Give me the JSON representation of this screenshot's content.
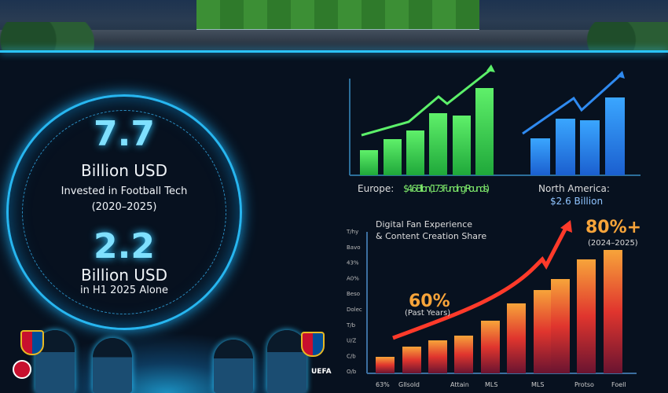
{
  "left_panel": {
    "stat1_value": "7.7",
    "stat1_unit": "Billion USD",
    "stat1_desc": "Invested in Football Tech",
    "stat1_period": "(2020–2025)",
    "stat2_value": "2.2",
    "stat2_unit": "Billion USD",
    "stat2_desc": "in H1 2025 Alone",
    "logo_text": "UEFA"
  },
  "chart_data": [
    {
      "type": "bar",
      "title": "Europe: $4.6 Billion (173 Funding Rounds)",
      "title_parts": {
        "label": "Europe:",
        "value": "$4.6 Billion (173 Funding Rounds)"
      },
      "values": [
        32,
        46,
        57,
        79,
        76,
        111
      ],
      "color": "#3ddc4f",
      "trend_arrow": true
    },
    {
      "type": "bar",
      "title": "North America: $2.6 Billion",
      "title_parts": {
        "label": "North America:",
        "value": "$2.6 Billion"
      },
      "values": [
        47,
        72,
        70,
        99
      ],
      "color": "#2f86f0",
      "trend_arrow": true
    },
    {
      "type": "bar",
      "title": "Digital Fan Experience & Content Creation Share",
      "title_lines": [
        "Digital Fan Experience",
        "& Content Creation Share"
      ],
      "ytick_labels": [
        "T/hy",
        "Bavo",
        "43%",
        "A0%",
        "Beso",
        "Dolec",
        "T/b",
        "U/Z",
        "C/b",
        "O/b"
      ],
      "xtick_labels": [
        "63%",
        "Gllsold",
        "Attain",
        "MLS",
        "MLS",
        "Protso",
        "Foell"
      ],
      "values": [
        21,
        34,
        42,
        48,
        67,
        89,
        106,
        120,
        145,
        157
      ],
      "annotations": [
        {
          "value": "60%",
          "note": "(Past Years)"
        },
        {
          "value": "80%+",
          "note": "(2024–2025)"
        }
      ],
      "colors": {
        "low": "#c3202e",
        "high": "#f7a43a"
      }
    }
  ]
}
